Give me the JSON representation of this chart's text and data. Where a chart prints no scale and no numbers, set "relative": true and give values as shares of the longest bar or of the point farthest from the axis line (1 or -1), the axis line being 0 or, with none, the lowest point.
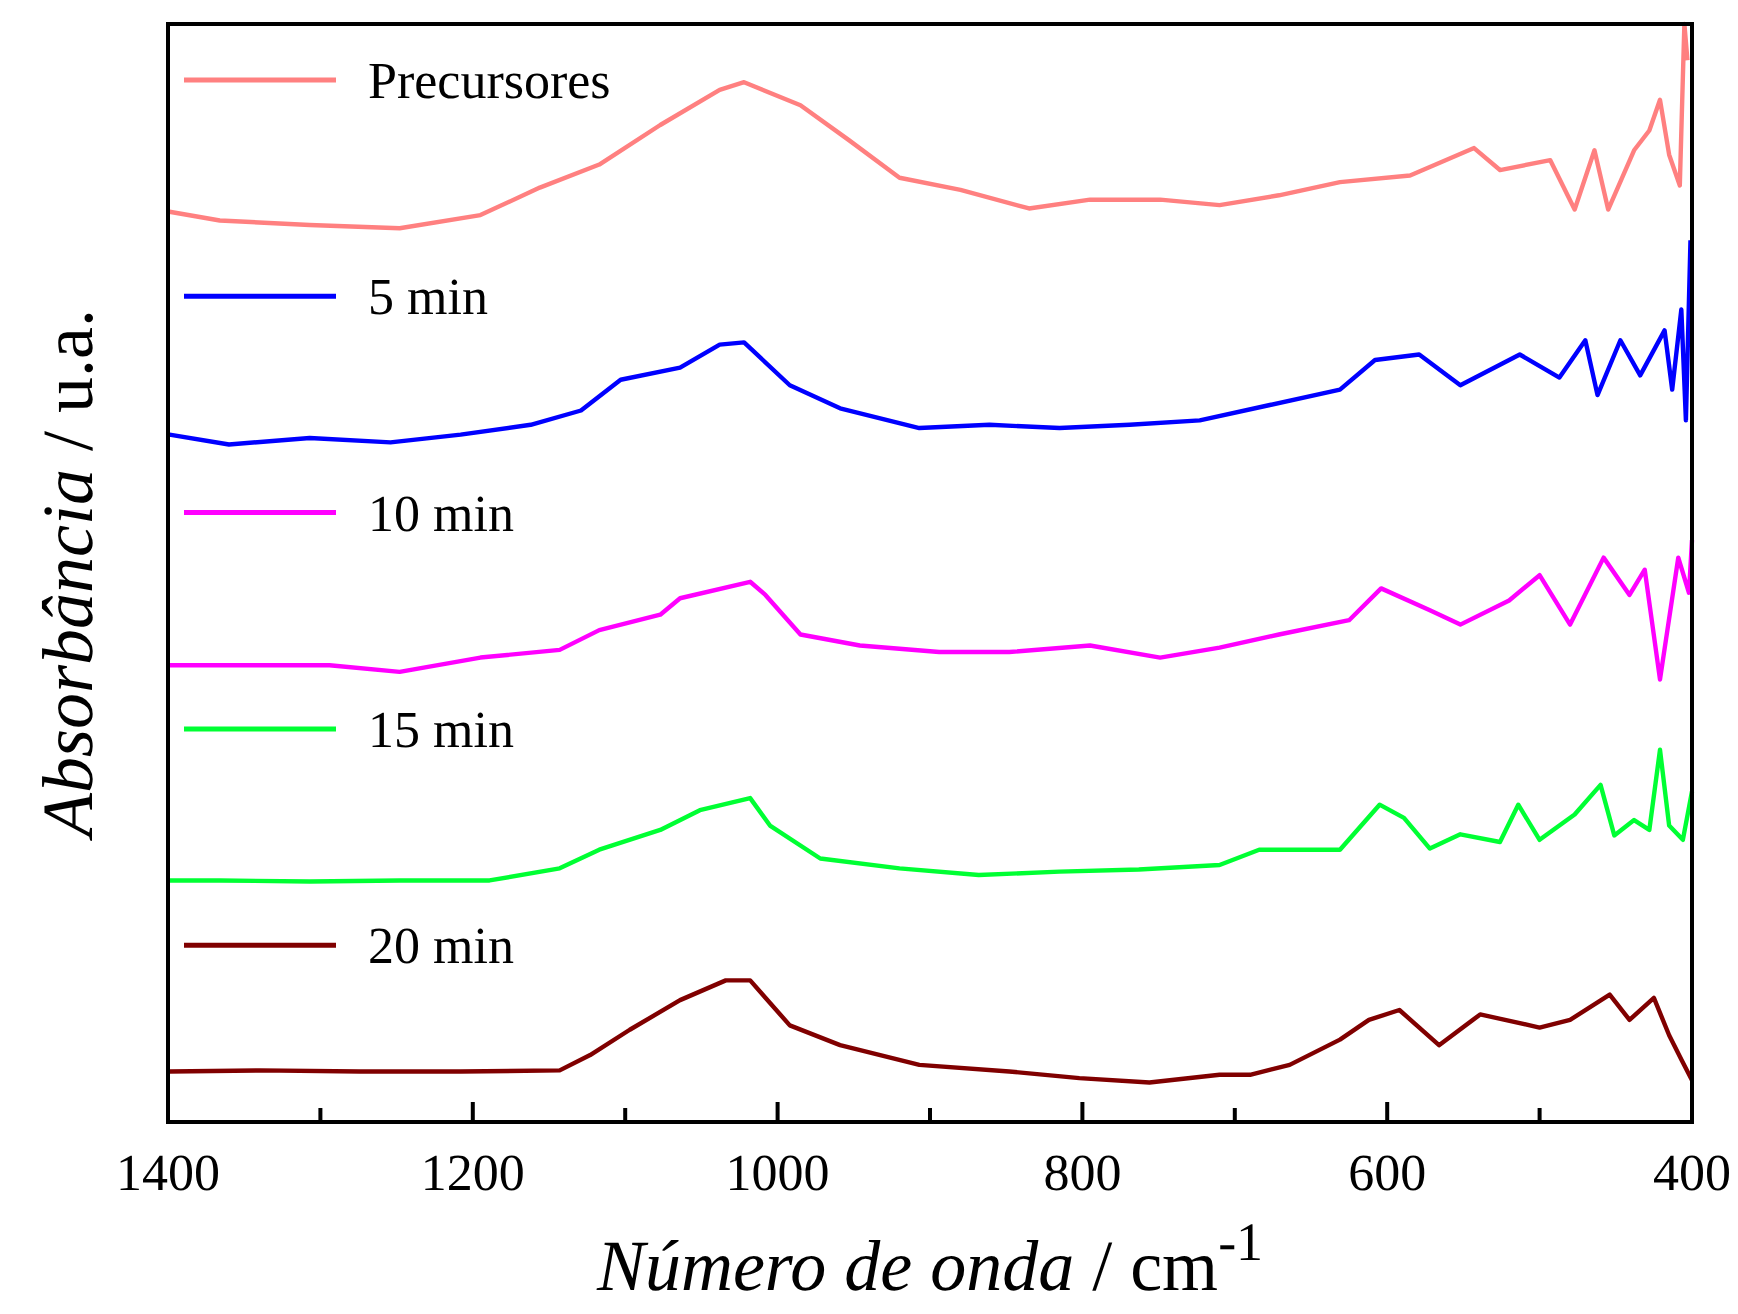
{
  "chart_data": {
    "type": "line",
    "relative": true,
    "xlabel": "Número de onda / cm$^{-1}$",
    "ylabel": "Absorbância / u.a.",
    "xlim": [
      1400,
      400
    ],
    "xticks": [
      1400,
      {
        "value": 1300,
        "label": null
      },
      1200,
      {
        "value": 1100,
        "label": null
      },
      1000,
      {
        "value": 900,
        "label": null
      },
      800,
      {
        "value": 700,
        "label": null
      },
      600,
      {
        "value": 500,
        "label": null
      },
      400
    ],
    "tick_labels": "x",
    "legend": "top left",
    "grid": false,
    "line_style": "solid",
    "series": [
      {
        "name": "Precursores",
        "color": "#ff8080",
        "x": [
          1399,
          1366,
          1307,
          1248,
          1195,
          1156,
          1117,
          1077,
          1038,
          1022,
          985,
          953,
          920,
          880,
          835,
          795,
          749,
          710,
          671,
          631,
          585,
          543,
          526,
          493,
          477,
          464,
          455,
          438,
          428,
          421,
          415,
          408,
          405,
          403
        ],
        "values": [
          0.829,
          0.821,
          0.817,
          0.814,
          0.826,
          0.851,
          0.872,
          0.908,
          0.94,
          0.947,
          0.926,
          0.894,
          0.86,
          0.849,
          0.832,
          0.84,
          0.84,
          0.835,
          0.844,
          0.856,
          0.862,
          0.887,
          0.867,
          0.876,
          0.831,
          0.885,
          0.831,
          0.885,
          0.903,
          0.931,
          0.881,
          0.853,
          1,
          0.967
        ]
      },
      {
        "name": "5 min",
        "color": "#0000ff",
        "x": [
          1399,
          1360,
          1307,
          1254,
          1208,
          1162,
          1129,
          1103,
          1064,
          1038,
          1022,
          992,
          959,
          907,
          861,
          815,
          769,
          723,
          677,
          631,
          608,
          579,
          552,
          513,
          487,
          470,
          462,
          447,
          434,
          418,
          413,
          407,
          404,
          401
        ],
        "values": [
          0.626,
          0.617,
          0.623,
          0.619,
          0.626,
          0.635,
          0.648,
          0.676,
          0.687,
          0.708,
          0.71,
          0.671,
          0.65,
          0.632,
          0.635,
          0.632,
          0.635,
          0.639,
          0.653,
          0.667,
          0.694,
          0.699,
          0.671,
          0.699,
          0.678,
          0.712,
          0.662,
          0.712,
          0.68,
          0.721,
          0.667,
          0.74,
          0.639,
          0.803
        ]
      },
      {
        "name": "10 min",
        "color": "#ff00ff",
        "x": [
          1399,
          1353,
          1294,
          1248,
          1195,
          1143,
          1117,
          1077,
          1064,
          1018,
          1008,
          985,
          946,
          894,
          848,
          795,
          749,
          710,
          671,
          625,
          604,
          572,
          552,
          520,
          500,
          480,
          458,
          441,
          431,
          421,
          409,
          402,
          400
        ],
        "values": [
          0.416,
          0.416,
          0.416,
          0.41,
          0.423,
          0.43,
          0.448,
          0.462,
          0.477,
          0.492,
          0.48,
          0.444,
          0.434,
          0.428,
          0.428,
          0.434,
          0.423,
          0.432,
          0.444,
          0.457,
          0.486,
          0.466,
          0.453,
          0.475,
          0.498,
          0.453,
          0.514,
          0.48,
          0.503,
          0.403,
          0.514,
          0.482,
          0.53
        ]
      },
      {
        "name": "15 min",
        "color": "#00ff33",
        "x": [
          1399,
          1366,
          1307,
          1248,
          1189,
          1143,
          1117,
          1077,
          1051,
          1018,
          1005,
          972,
          920,
          868,
          815,
          763,
          710,
          684,
          631,
          605,
          589,
          572,
          552,
          526,
          514,
          500,
          477,
          460,
          451,
          438,
          428,
          421,
          415,
          406,
          400
        ],
        "values": [
          0.22,
          0.22,
          0.219,
          0.22,
          0.22,
          0.231,
          0.248,
          0.266,
          0.284,
          0.295,
          0.27,
          0.24,
          0.231,
          0.225,
          0.228,
          0.23,
          0.234,
          0.248,
          0.248,
          0.289,
          0.277,
          0.249,
          0.262,
          0.255,
          0.289,
          0.257,
          0.28,
          0.307,
          0.261,
          0.275,
          0.266,
          0.339,
          0.27,
          0.257,
          0.301
        ]
      },
      {
        "name": "20 min",
        "color": "#800000",
        "x": [
          1399,
          1340,
          1274,
          1208,
          1143,
          1123,
          1097,
          1064,
          1034,
          1018,
          992,
          959,
          907,
          848,
          802,
          756,
          710,
          690,
          664,
          631,
          612,
          592,
          566,
          539,
          500,
          480,
          454,
          441,
          425,
          415,
          407,
          400
        ],
        "values": [
          0.046,
          0.047,
          0.046,
          0.046,
          0.047,
          0.061,
          0.084,
          0.111,
          0.129,
          0.129,
          0.088,
          0.07,
          0.052,
          0.046,
          0.04,
          0.036,
          0.043,
          0.043,
          0.052,
          0.075,
          0.093,
          0.102,
          0.07,
          0.098,
          0.086,
          0.093,
          0.116,
          0.093,
          0.113,
          0.079,
          0.057,
          0.038
        ]
      }
    ]
  }
}
